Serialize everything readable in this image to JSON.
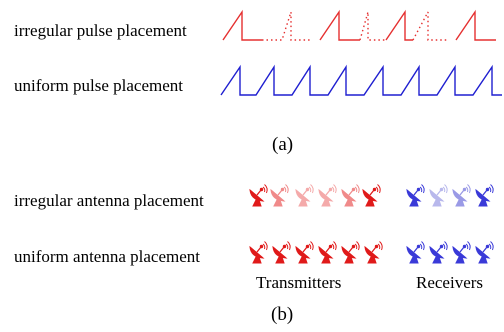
{
  "panel_a": {
    "caption": "(a)",
    "rows": [
      {
        "label": "irregular pulse placement",
        "color": "#e53030"
      },
      {
        "label": "uniform pulse placement",
        "color": "#1f1fd0"
      }
    ]
  },
  "panel_b": {
    "caption": "(b)",
    "rows": [
      {
        "label": "irregular antenna placement"
      },
      {
        "label": "uniform antenna placement"
      }
    ],
    "transmitters_label": "Transmitters",
    "receivers_label": "Receivers",
    "transmitter_color": "#e01a1a",
    "receiver_color": "#3a3ad8",
    "icon": "satellite-dish-icon"
  }
}
